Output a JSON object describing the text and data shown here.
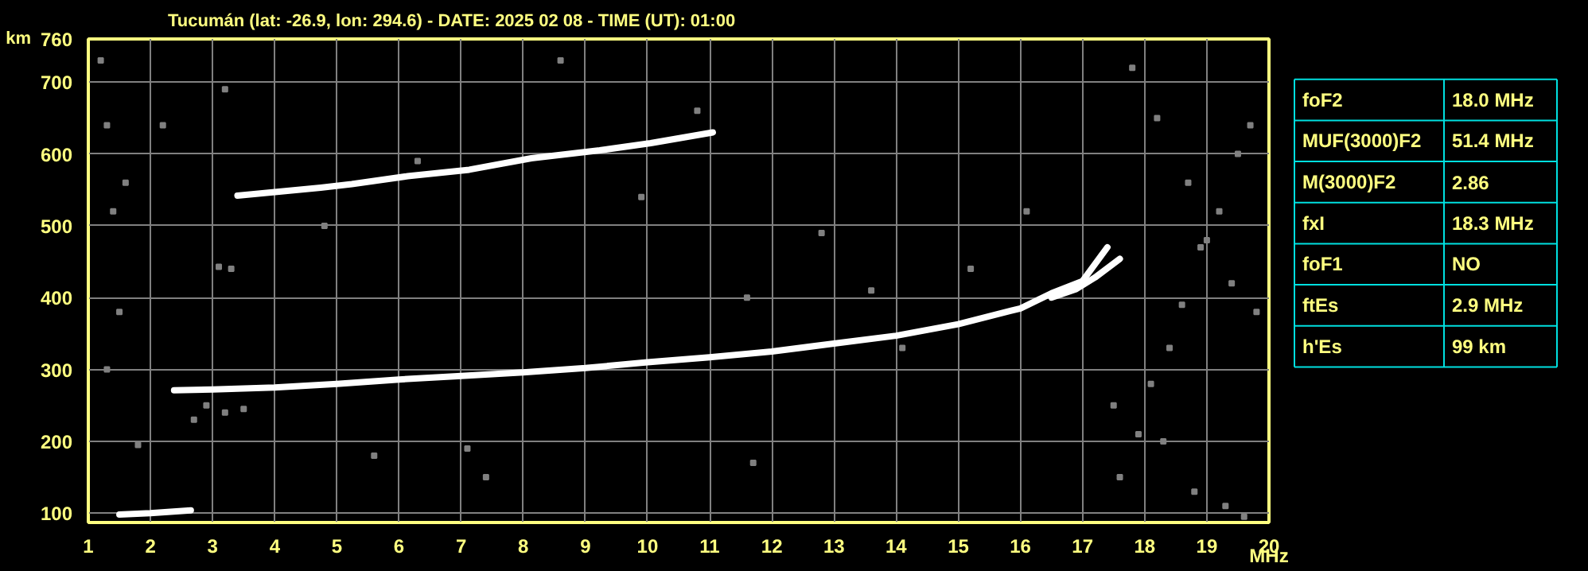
{
  "chart_data": [
    {
      "type": "scatter",
      "title": "Tucumán (lat: -26.9, lon: 294.6) - DATE: 2025 02 08 - TIME (UT): 01:00",
      "xlabel": "MHz",
      "ylabel": "km",
      "xlim": [
        1,
        20
      ],
      "ylim": [
        87,
        760
      ],
      "xticks": [
        1,
        2,
        3,
        4,
        5,
        6,
        7,
        8,
        9,
        10,
        11,
        12,
        13,
        14,
        15,
        16,
        17,
        18,
        19,
        20
      ],
      "yticks": [
        100,
        200,
        300,
        400,
        500,
        600,
        700,
        760
      ],
      "grid": true,
      "series": [
        {
          "type": "line",
          "color": "#ffffff",
          "x": [
            2.38,
            3,
            4,
            5,
            6,
            7,
            8,
            9,
            10,
            11,
            12,
            13,
            14,
            15,
            16,
            16.5,
            17,
            17.4
          ],
          "values": [
            271,
            272,
            275,
            280,
            286,
            291,
            296,
            302,
            310,
            317,
            325,
            336,
            347,
            363,
            385,
            406,
            423,
            470
          ]
        },
        {
          "type": "line",
          "color": "#ffffff",
          "x": [
            16.5,
            16.9,
            17.2,
            17.6
          ],
          "values": [
            400,
            412,
            428,
            454
          ]
        },
        {
          "type": "line",
          "color": "#ffffff",
          "x": [
            3.4,
            4.74,
            5.24,
            6.14,
            7.13,
            8.13,
            9.23,
            10.05,
            11.05
          ],
          "values": [
            542,
            553,
            558,
            569,
            578,
            594,
            605,
            615,
            630
          ]
        },
        {
          "type": "line",
          "color": "#ffffff",
          "x": [
            1.5,
            2,
            2.65
          ],
          "values": [
            98,
            100,
            104
          ]
        },
        {
          "type": "scatter",
          "color": "#808080",
          "marker": "square",
          "x": [
            1.2,
            1.3,
            1.6,
            3.1,
            3.3,
            2.7,
            2.9,
            3.2,
            3.5,
            1.8,
            1.3,
            1.5,
            7.4,
            7.1,
            11.7,
            11.6,
            17.6,
            17.9,
            18.1,
            18.4,
            18.6,
            18.9,
            19.2,
            19.5,
            19.7,
            17.8,
            18.2,
            18.7,
            19.0,
            19.4,
            19.8,
            17.5,
            18.3,
            18.8,
            19.3,
            19.6,
            15.2,
            14.1,
            12.8,
            9.9,
            6.3,
            3.2,
            2.2,
            1.4,
            5.6,
            8.6,
            10.8,
            4.8,
            13.6,
            16.1
          ],
          "values": [
            730,
            640,
            560,
            443,
            440,
            230,
            250,
            240,
            245,
            195,
            300,
            380,
            150,
            190,
            170,
            400,
            150,
            210,
            280,
            330,
            390,
            470,
            520,
            600,
            640,
            720,
            650,
            560,
            480,
            420,
            380,
            250,
            200,
            130,
            110,
            95,
            440,
            330,
            490,
            540,
            590,
            690,
            640,
            520,
            180,
            730,
            660,
            500,
            410,
            520
          ]
        }
      ]
    },
    {
      "type": "other",
      "categories": [
        "foF2",
        "MUF(3000)F2",
        "M(3000)F2",
        "fxI",
        "foF1",
        "ftEs",
        "h'Es"
      ],
      "value_labels": [
        "18.0 MHz",
        "51.4 MHz",
        "2.86",
        "18.3 MHz",
        "NO",
        "2.9 MHz",
        "99 km"
      ]
    }
  ]
}
